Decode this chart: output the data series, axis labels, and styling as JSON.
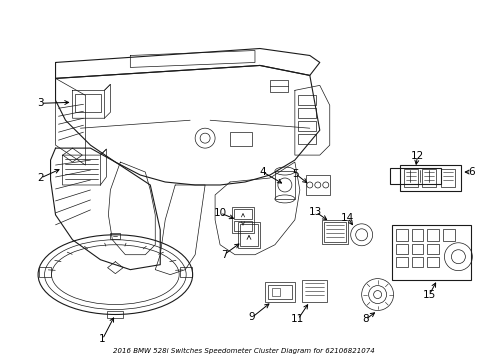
{
  "title": "2016 BMW 528i Switches Speedometer Cluster Diagram for 62106821074",
  "background_color": "#ffffff",
  "line_color": "#1a1a1a",
  "text_color": "#000000",
  "fig_width": 4.89,
  "fig_height": 3.6,
  "dpi": 100
}
